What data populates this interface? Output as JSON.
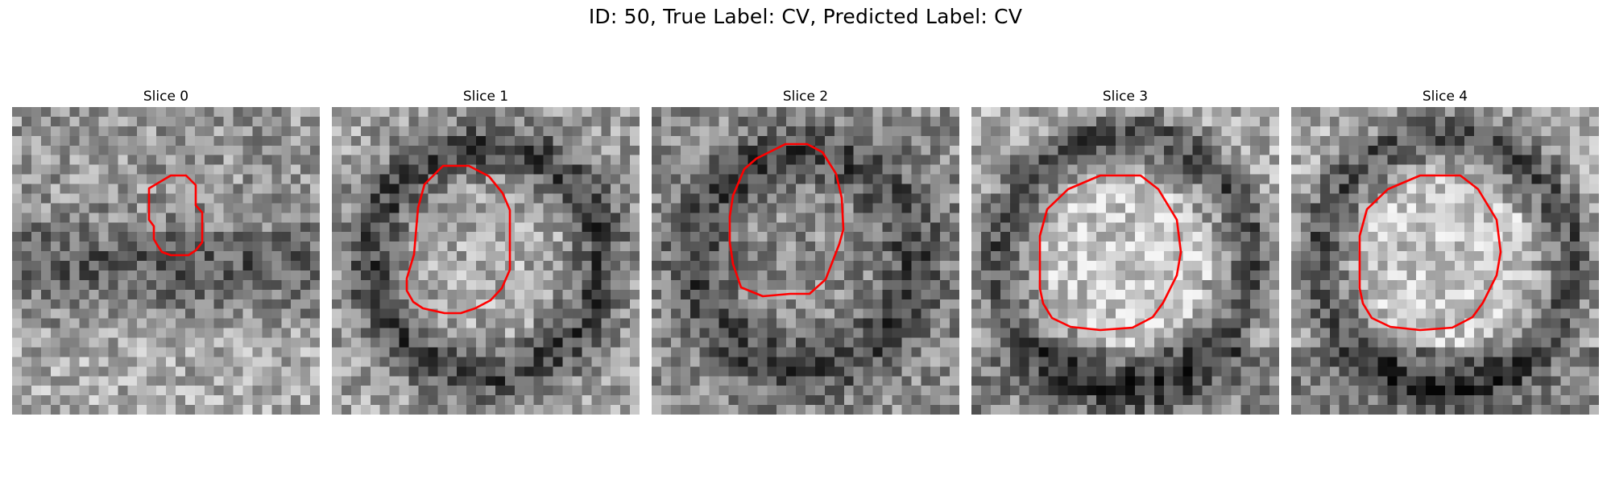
{
  "figure": {
    "title": "ID: 50, True Label: CV, Predicted Label: CV"
  },
  "slices": [
    {
      "label": "Slice 0",
      "seed": 11,
      "pattern": "dark-band"
    },
    {
      "label": "Slice 1",
      "seed": 23,
      "pattern": "ring"
    },
    {
      "label": "Slice 2",
      "seed": 37,
      "pattern": "ring-mid"
    },
    {
      "label": "Slice 3",
      "seed": 41,
      "pattern": "bright-center"
    },
    {
      "label": "Slice 4",
      "seed": 53,
      "pattern": "bright-center"
    }
  ],
  "contour_color": "#ff0000",
  "colormap": "gray"
}
